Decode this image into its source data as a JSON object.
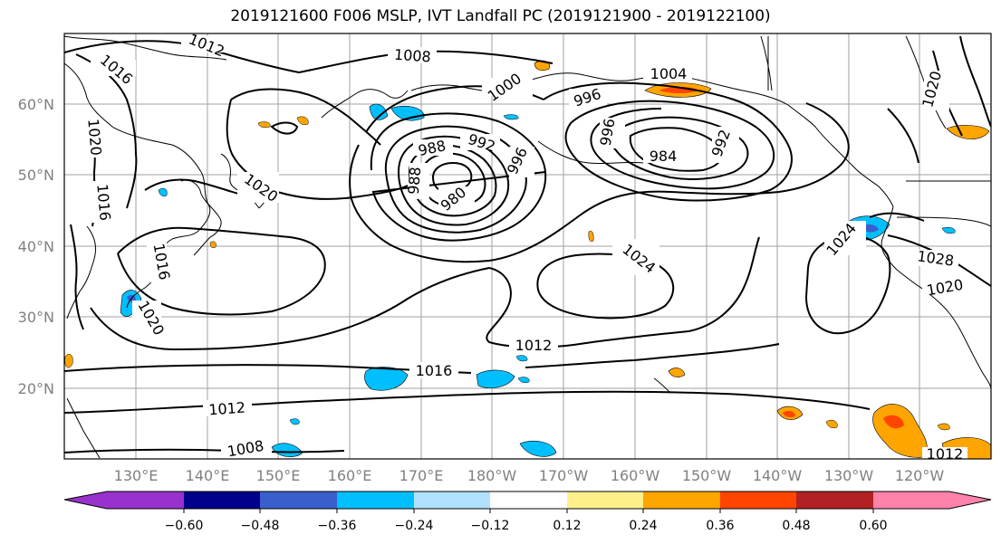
{
  "title": "2019121600 F006 MSLP, IVT Landfall PC (2019121900 - 2019122100)",
  "lat_ticks": [
    "60°N",
    "50°N",
    "40°N",
    "30°N",
    "20°N"
  ],
  "lon_ticks": [
    "130°E",
    "140°E",
    "150°E",
    "160°E",
    "170°E",
    "180°W",
    "170°W",
    "160°W",
    "150°W",
    "140°W",
    "130°W",
    "120°W"
  ],
  "colorbar": {
    "ticks": [
      "−0.60",
      "−0.48",
      "−0.36",
      "−0.24",
      "−0.12",
      "0.12",
      "0.24",
      "0.36",
      "0.48",
      "0.60"
    ],
    "colors": [
      "#9932cc",
      "#00008b",
      "#3a5fcd",
      "#00bfff",
      "#b0e2ff",
      "#ffffff",
      "#fff08c",
      "#ffa500",
      "#ff4500",
      "#b22222",
      "#ff82ab"
    ]
  },
  "contour_labels": [
    "1012",
    "1016",
    "1020",
    "1016",
    "1008",
    "1004",
    "1000",
    "996",
    "992",
    "988",
    "984",
    "980",
    "996",
    "992",
    "996",
    "988",
    "1020",
    "1016",
    "1024",
    "1028",
    "1020",
    "1024",
    "1012",
    "1020",
    "1016",
    "1012",
    "1008",
    "1012",
    "1020"
  ]
}
